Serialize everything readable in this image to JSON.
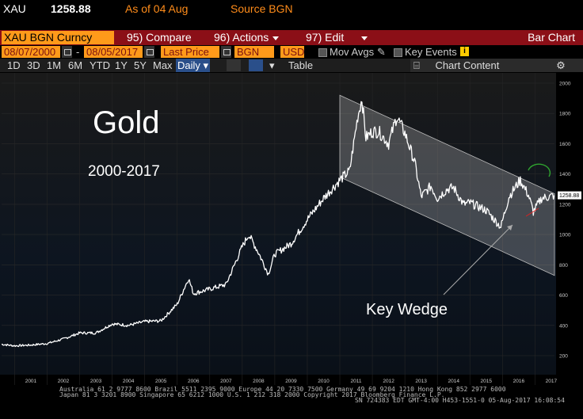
{
  "header": {
    "ticker": "XAU",
    "price": "1258.88",
    "as_of": "As of 04 Aug",
    "source": "Source BGN"
  },
  "toolbar": {
    "security": "XAU BGN Curncy",
    "compare_num": "95)",
    "compare_label": "Compare",
    "actions_num": "96)",
    "actions_label": "Actions",
    "edit_num": "97)",
    "edit_label": "Edit",
    "chart_type": "Bar Chart"
  },
  "fields": {
    "start_date": "08/07/2000",
    "end_date": "08/05/2017",
    "price_field": "Last Price",
    "source": "BGN",
    "currency": "USD",
    "mov_avgs": "Mov Avgs",
    "key_events": "Key Events",
    "info_badge": "i"
  },
  "periods": [
    "1D",
    "3D",
    "1M",
    "6M",
    "YTD",
    "1Y",
    "5Y",
    "Max"
  ],
  "frequency": "Daily",
  "table_label": "Table",
  "chart_content_label": "Chart Content",
  "footer": {
    "line1": "Australia 61 2 9777 8600  Brazil 5511 2395 9000  Europe 44 20 7330 7500  Germany 49 69 9204 1210  Hong Kong 852 2977 6000",
    "line2": "Japan 81 3 3201 8900        Singapore 65 6212 1000       U.S. 1 212 318 2000               Copyright 2017 Bloomberg Finance L.P.",
    "line3": "SN 724383 EDT  GMT-4:00 H453-1551-0 05-Aug-2017 16:08:54"
  },
  "colors": {
    "background": "#000000",
    "toolbar_red": "#8b0f17",
    "field_orange": "#ff9a1a",
    "price_line": "#ffffff",
    "channel_fill": "#ffffff",
    "last_price_tag": "#ffffff"
  },
  "chart_data": {
    "type": "line",
    "title": "Gold",
    "subtitle": "2000-2017",
    "annotation": "Key Wedge",
    "last_price_label": "1258.88",
    "x_ticks": [
      "2001",
      "2002",
      "2003",
      "2004",
      "2005",
      "2006",
      "2007",
      "2008",
      "2009",
      "2010",
      "2011",
      "2012",
      "2013",
      "2014",
      "2015",
      "2016",
      "2017"
    ],
    "y_ticks": [
      200,
      400,
      600,
      800,
      1000,
      1200,
      1400,
      1600,
      1800,
      2000
    ],
    "ylim": [
      100,
      2050
    ],
    "xlim": [
      2000.6,
      2017.6
    ],
    "series": [
      {
        "x": [
          2000.6,
          2001.0,
          2001.5,
          2002.0,
          2002.5,
          2003.0,
          2003.5,
          2004.0,
          2004.5,
          2005.0,
          2005.5,
          2006.0,
          2006.35,
          2006.5,
          2007.0,
          2007.5,
          2008.0,
          2008.2,
          2008.5,
          2008.8,
          2009.0,
          2009.5,
          2010.0,
          2010.5,
          2011.0,
          2011.3,
          2011.55,
          2011.68,
          2011.8,
          2012.0,
          2012.2,
          2012.5,
          2012.75,
          2013.0,
          2013.3,
          2013.5,
          2013.8,
          2014.0,
          2014.3,
          2014.5,
          2014.8,
          2015.0,
          2015.5,
          2015.95,
          2016.2,
          2016.55,
          2016.8,
          2016.95,
          2017.2,
          2017.45,
          2017.59
        ],
        "y": [
          275,
          265,
          270,
          280,
          310,
          350,
          350,
          410,
          400,
          425,
          430,
          540,
          710,
          610,
          640,
          670,
          920,
          1000,
          880,
          740,
          870,
          940,
          1100,
          1240,
          1360,
          1420,
          1780,
          1900,
          1640,
          1680,
          1680,
          1600,
          1780,
          1670,
          1480,
          1250,
          1320,
          1240,
          1300,
          1310,
          1200,
          1210,
          1160,
          1050,
          1250,
          1360,
          1260,
          1150,
          1240,
          1250,
          1259
        ]
      }
    ],
    "channel": {
      "top_start": [
        2011.0,
        1920
      ],
      "top_end": [
        2017.6,
        1270
      ],
      "bottom_start": [
        2011.0,
        1380
      ],
      "bottom_end": [
        2017.6,
        730
      ]
    }
  }
}
